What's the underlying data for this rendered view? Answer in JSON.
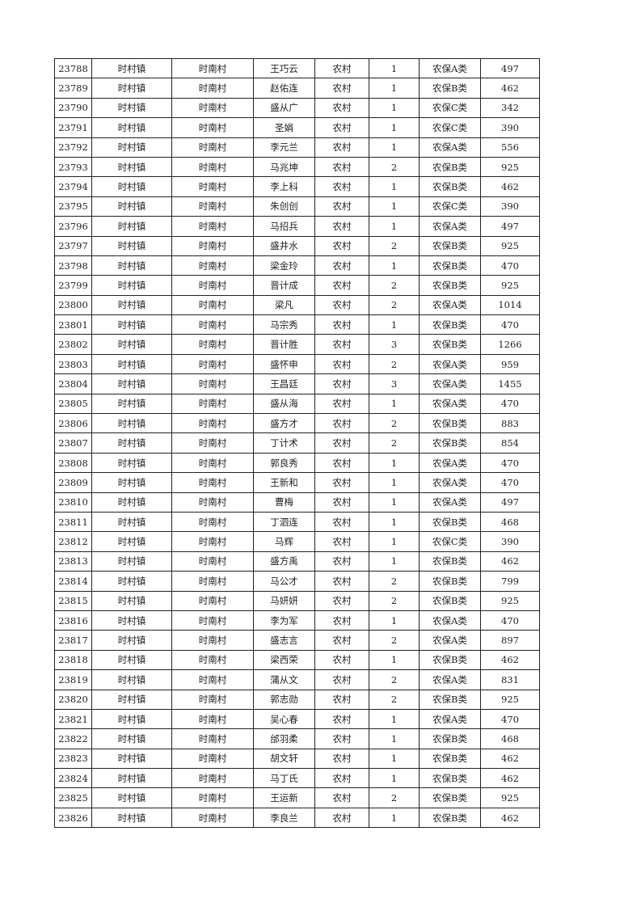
{
  "rows": [
    [
      "23788",
      "时村镇",
      "时南村",
      "王巧云",
      "农村",
      "1",
      "农保A类",
      "497"
    ],
    [
      "23789",
      "时村镇",
      "时南村",
      "赵佑连",
      "农村",
      "1",
      "农保B类",
      "462"
    ],
    [
      "23790",
      "时村镇",
      "时南村",
      "盛从广",
      "农村",
      "1",
      "农保C类",
      "342"
    ],
    [
      "23791",
      "时村镇",
      "时南村",
      "圣娟",
      "农村",
      "1",
      "农保C类",
      "390"
    ],
    [
      "23792",
      "时村镇",
      "时南村",
      "李元兰",
      "农村",
      "1",
      "农保A类",
      "556"
    ],
    [
      "23793",
      "时村镇",
      "时南村",
      "马兆坤",
      "农村",
      "2",
      "农保B类",
      "925"
    ],
    [
      "23794",
      "时村镇",
      "时南村",
      "李上科",
      "农村",
      "1",
      "农保B类",
      "462"
    ],
    [
      "23795",
      "时村镇",
      "时南村",
      "朱创创",
      "农村",
      "1",
      "农保C类",
      "390"
    ],
    [
      "23796",
      "时村镇",
      "时南村",
      "马招兵",
      "农村",
      "1",
      "农保A类",
      "497"
    ],
    [
      "23797",
      "时村镇",
      "时南村",
      "盛井水",
      "农村",
      "2",
      "农保B类",
      "925"
    ],
    [
      "23798",
      "时村镇",
      "时南村",
      "梁金玲",
      "农村",
      "1",
      "农保B类",
      "470"
    ],
    [
      "23799",
      "时村镇",
      "时南村",
      "晋计成",
      "农村",
      "2",
      "农保B类",
      "925"
    ],
    [
      "23800",
      "时村镇",
      "时南村",
      "梁凡",
      "农村",
      "2",
      "农保A类",
      "1014"
    ],
    [
      "23801",
      "时村镇",
      "时南村",
      "马宗秀",
      "农村",
      "1",
      "农保B类",
      "470"
    ],
    [
      "23802",
      "时村镇",
      "时南村",
      "晋计胜",
      "农村",
      "3",
      "农保B类",
      "1266"
    ],
    [
      "23803",
      "时村镇",
      "时南村",
      "盛怀申",
      "农村",
      "2",
      "农保A类",
      "959"
    ],
    [
      "23804",
      "时村镇",
      "时南村",
      "王昌廷",
      "农村",
      "3",
      "农保A类",
      "1455"
    ],
    [
      "23805",
      "时村镇",
      "时南村",
      "盛从海",
      "农村",
      "1",
      "农保A类",
      "470"
    ],
    [
      "23806",
      "时村镇",
      "时南村",
      "盛方才",
      "农村",
      "2",
      "农保B类",
      "883"
    ],
    [
      "23807",
      "时村镇",
      "时南村",
      "丁计术",
      "农村",
      "2",
      "农保B类",
      "854"
    ],
    [
      "23808",
      "时村镇",
      "时南村",
      "郭良秀",
      "农村",
      "1",
      "农保A类",
      "470"
    ],
    [
      "23809",
      "时村镇",
      "时南村",
      "王新和",
      "农村",
      "1",
      "农保A类",
      "470"
    ],
    [
      "23810",
      "时村镇",
      "时南村",
      "曹梅",
      "农村",
      "1",
      "农保A类",
      "497"
    ],
    [
      "23811",
      "时村镇",
      "时南村",
      "丁泗连",
      "农村",
      "1",
      "农保B类",
      "468"
    ],
    [
      "23812",
      "时村镇",
      "时南村",
      "马辉",
      "农村",
      "1",
      "农保C类",
      "390"
    ],
    [
      "23813",
      "时村镇",
      "时南村",
      "盛方禹",
      "农村",
      "1",
      "农保B类",
      "462"
    ],
    [
      "23814",
      "时村镇",
      "时南村",
      "马公才",
      "农村",
      "2",
      "农保B类",
      "799"
    ],
    [
      "23815",
      "时村镇",
      "时南村",
      "马妍妍",
      "农村",
      "2",
      "农保B类",
      "925"
    ],
    [
      "23816",
      "时村镇",
      "时南村",
      "李为军",
      "农村",
      "1",
      "农保A类",
      "470"
    ],
    [
      "23817",
      "时村镇",
      "时南村",
      "盛志言",
      "农村",
      "2",
      "农保A类",
      "897"
    ],
    [
      "23818",
      "时村镇",
      "时南村",
      "梁西荣",
      "农村",
      "1",
      "农保B类",
      "462"
    ],
    [
      "23819",
      "时村镇",
      "时南村",
      "蒲从文",
      "农村",
      "2",
      "农保A类",
      "831"
    ],
    [
      "23820",
      "时村镇",
      "时南村",
      "郭志勋",
      "农村",
      "2",
      "农保B类",
      "925"
    ],
    [
      "23821",
      "时村镇",
      "时南村",
      "吴心春",
      "农村",
      "1",
      "农保A类",
      "470"
    ],
    [
      "23822",
      "时村镇",
      "时南村",
      "邰羽柔",
      "农村",
      "1",
      "农保B类",
      "468"
    ],
    [
      "23823",
      "时村镇",
      "时南村",
      "胡文轩",
      "农村",
      "1",
      "农保B类",
      "462"
    ],
    [
      "23824",
      "时村镇",
      "时南村",
      "马丁氏",
      "农村",
      "1",
      "农保B类",
      "462"
    ],
    [
      "23825",
      "时村镇",
      "时南村",
      "王运新",
      "农村",
      "2",
      "农保B类",
      "925"
    ],
    [
      "23826",
      "时村镇",
      "时南村",
      "李良兰",
      "农村",
      "1",
      "农保B类",
      "462"
    ]
  ]
}
